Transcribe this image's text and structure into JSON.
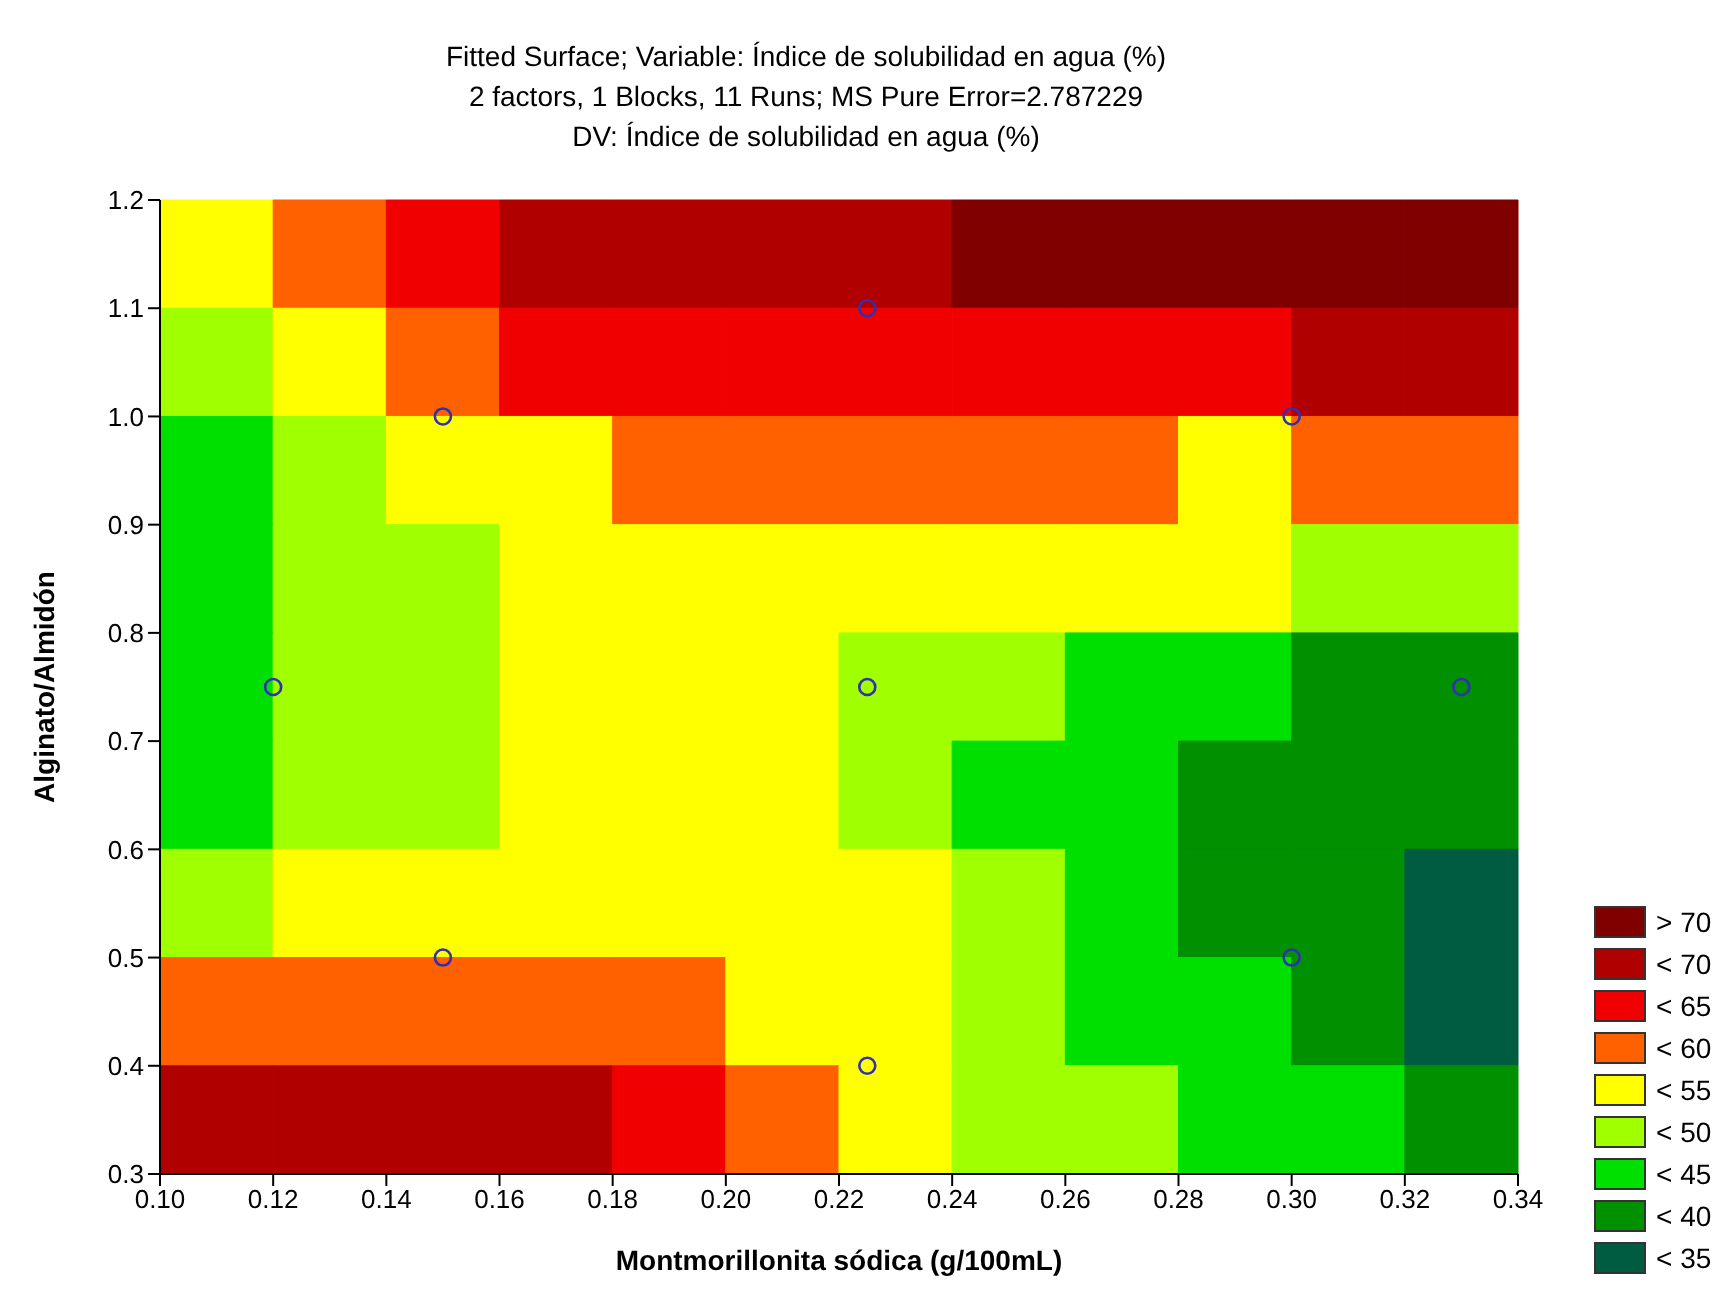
{
  "chart_data": {
    "type": "heatmap",
    "title": "Fitted Surface; Variable: Índice de solubilidad en agua (%)",
    "subtitle": "2 factors, 1 Blocks, 11 Runs; MS Pure Error=2.787229",
    "annotations": [
      "DV: Índice de solubilidad en agua (%)"
    ],
    "xlabel": "Montmorillonita sódica (g/100mL)",
    "ylabel": "Alginato/Almidón",
    "xlim": [
      0.1,
      0.34
    ],
    "xticks": [
      {
        "value": 0.1,
        "label": "0.10"
      },
      {
        "value": 0.12,
        "label": "0.12"
      },
      {
        "value": 0.14,
        "label": "0.14"
      },
      {
        "value": 0.16,
        "label": "0.16"
      },
      {
        "value": 0.18,
        "label": "0.18"
      },
      {
        "value": 0.2,
        "label": "0.20"
      },
      {
        "value": 0.22,
        "label": "0.22"
      },
      {
        "value": 0.24,
        "label": "0.24"
      },
      {
        "value": 0.26,
        "label": "0.26"
      },
      {
        "value": 0.28,
        "label": "0.28"
      },
      {
        "value": 0.3,
        "label": "0.30"
      },
      {
        "value": 0.32,
        "label": "0.32"
      },
      {
        "value": 0.34,
        "label": "0.34"
      }
    ],
    "ylim": [
      0.3,
      1.2
    ],
    "yticks": [
      {
        "value": 0.3,
        "label": "0.3"
      },
      {
        "value": 0.4,
        "label": "0.4"
      },
      {
        "value": 0.5,
        "label": "0.5"
      },
      {
        "value": 0.6,
        "label": "0.6"
      },
      {
        "value": 0.7,
        "label": "0.7"
      },
      {
        "value": 0.8,
        "label": "0.8"
      },
      {
        "value": 0.9,
        "label": "0.9"
      },
      {
        "value": 1.0,
        "label": "1.0"
      },
      {
        "value": 1.1,
        "label": "1.1"
      },
      {
        "value": 1.2,
        "label": "1.2"
      }
    ],
    "cells": [
      [
        52.5,
        57.5,
        62.5,
        67.5,
        67.5,
        67.5,
        67.5,
        72.5,
        72.5,
        72.5,
        72.5,
        72.5
      ],
      [
        47.5,
        52.5,
        57.5,
        62.5,
        62.5,
        62.5,
        62.5,
        62.5,
        62.5,
        62.5,
        67.5,
        67.5
      ],
      [
        42.5,
        47.5,
        52.5,
        52.5,
        57.5,
        57.5,
        57.5,
        57.5,
        57.5,
        52.5,
        57.5,
        57.5
      ],
      [
        42.5,
        47.5,
        47.5,
        52.5,
        52.5,
        52.5,
        52.5,
        52.5,
        52.5,
        52.5,
        47.5,
        47.5
      ],
      [
        42.5,
        47.5,
        47.5,
        52.5,
        52.5,
        52.5,
        47.5,
        47.5,
        42.5,
        42.5,
        37.5,
        37.5
      ],
      [
        42.5,
        47.5,
        47.5,
        52.5,
        52.5,
        52.5,
        47.5,
        42.5,
        42.5,
        37.5,
        37.5,
        37.5
      ],
      [
        47.5,
        52.5,
        52.5,
        52.5,
        52.5,
        52.5,
        52.5,
        47.5,
        42.5,
        37.5,
        37.5,
        32.5
      ],
      [
        57.5,
        57.5,
        57.5,
        57.5,
        57.5,
        52.5,
        52.5,
        47.5,
        42.5,
        42.5,
        37.5,
        32.5
      ],
      [
        67.5,
        67.5,
        67.5,
        67.5,
        62.5,
        57.5,
        52.5,
        47.5,
        47.5,
        42.5,
        42.5,
        37.5
      ]
    ],
    "cticks": [
      {
        "value": 72.5,
        "label": "> 70"
      },
      {
        "value": 67.5,
        "label": "< 70"
      },
      {
        "value": 62.5,
        "label": "< 65"
      },
      {
        "value": 57.5,
        "label": "< 60"
      },
      {
        "value": 52.5,
        "label": "< 55"
      },
      {
        "value": 47.5,
        "label": "< 50"
      },
      {
        "value": 42.5,
        "label": "< 45"
      },
      {
        "value": 37.5,
        "label": "< 40"
      },
      {
        "value": 32.5,
        "label": "< 35"
      }
    ],
    "colors": [
      "#800000",
      "#b00000",
      "#f00000",
      "#ff6000",
      "#ffff00",
      "#a0ff00",
      "#00e000",
      "#009000",
      "#005c40"
    ],
    "series": [
      {
        "type": "scatter",
        "color": "#3030b0",
        "marker": "circle",
        "x": [
          0.12,
          0.15,
          0.15,
          0.225,
          0.225,
          0.225,
          0.3,
          0.3,
          0.33
        ],
        "values": [
          0.75,
          0.5,
          1.0,
          0.4,
          0.75,
          1.1,
          0.5,
          1.0,
          0.75
        ]
      }
    ]
  }
}
